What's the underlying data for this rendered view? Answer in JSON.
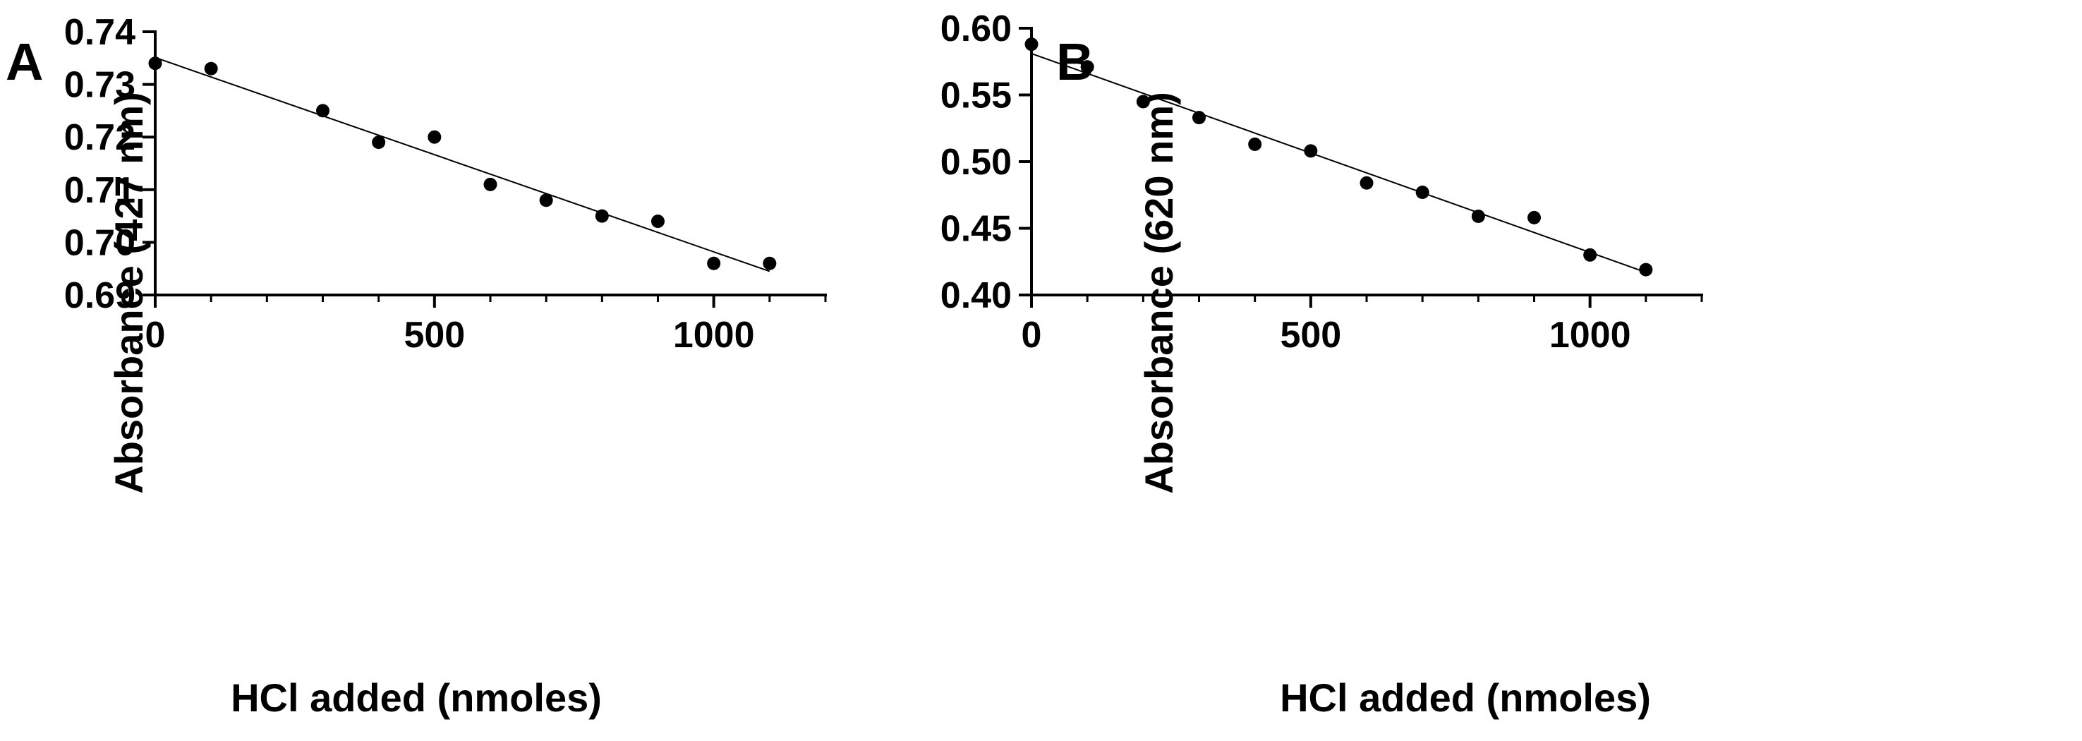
{
  "chart_data": [
    {
      "panel": "A",
      "type": "scatter",
      "fit_line": {
        "x": [
          0,
          1100
        ],
        "y": [
          0.7351,
          0.6945
        ]
      },
      "x": [
        0,
        100,
        300,
        400,
        500,
        600,
        700,
        800,
        900,
        1000,
        1100
      ],
      "y": [
        0.734,
        0.733,
        0.725,
        0.719,
        0.72,
        0.711,
        0.708,
        0.705,
        0.704,
        0.696,
        0.696
      ],
      "xlabel": "HCl added (nmoles)",
      "ylabel": "Absorbance (427 nm)",
      "xlim": [
        0,
        1200
      ],
      "ylim": [
        0.69,
        0.74
      ],
      "xticks": [
        0,
        500,
        1000
      ],
      "xtick_labels": [
        "0",
        "500",
        "1000"
      ],
      "xminor": [
        100,
        200,
        300,
        400,
        600,
        700,
        800,
        900,
        1100,
        1200
      ],
      "yticks": [
        0.69,
        0.7,
        0.71,
        0.72,
        0.73,
        0.74
      ],
      "ytick_labels": [
        "0.69",
        "0.70",
        "0.71",
        "0.72",
        "0.73",
        "0.74"
      ],
      "grid": false
    },
    {
      "panel": "B",
      "type": "scatter",
      "fit_line": {
        "x": [
          0,
          1100
        ],
        "y": [
          0.581,
          0.417
        ]
      },
      "x": [
        0,
        100,
        200,
        300,
        400,
        500,
        600,
        700,
        800,
        900,
        1000,
        1100
      ],
      "y": [
        0.588,
        0.571,
        0.545,
        0.533,
        0.513,
        0.508,
        0.484,
        0.477,
        0.459,
        0.458,
        0.43,
        0.419
      ],
      "xlabel": "HCl added (nmoles)",
      "ylabel": "Absorbance (620 nm)",
      "xlim": [
        0,
        1200
      ],
      "ylim": [
        0.4,
        0.6
      ],
      "xticks": [
        0,
        500,
        1000
      ],
      "xtick_labels": [
        "0",
        "500",
        "1000"
      ],
      "xminor": [
        100,
        200,
        300,
        400,
        600,
        700,
        800,
        900,
        1100,
        1200
      ],
      "yticks": [
        0.4,
        0.45,
        0.5,
        0.55,
        0.6
      ],
      "ytick_labels": [
        "0.40",
        "0.45",
        "0.50",
        "0.55",
        "0.60"
      ],
      "grid": false
    }
  ],
  "colors": {
    "points": "#000000",
    "axes": "#000000",
    "fit_line": "#000000",
    "background": "#ffffff"
  }
}
